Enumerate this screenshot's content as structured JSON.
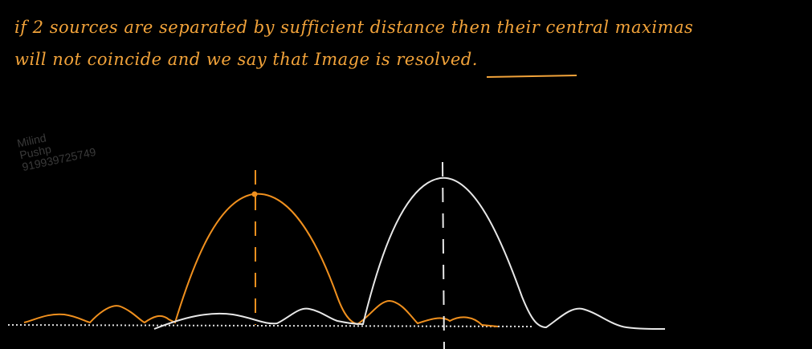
{
  "note": {
    "line1": "if 2 sources are separated by sufficient distance then their central maximas",
    "line2_prefix": "will not coincide and we say that Image is ",
    "line2_emphasis": "resolved",
    "line2_suffix": ".",
    "color": "#f2a33a"
  },
  "watermark": {
    "name1": "Milind",
    "name2": "Pushp",
    "phone": "919939725749"
  },
  "colors": {
    "source1": "#f0901e",
    "source2": "#e8e8e8",
    "baseline": "#dddddd"
  }
}
